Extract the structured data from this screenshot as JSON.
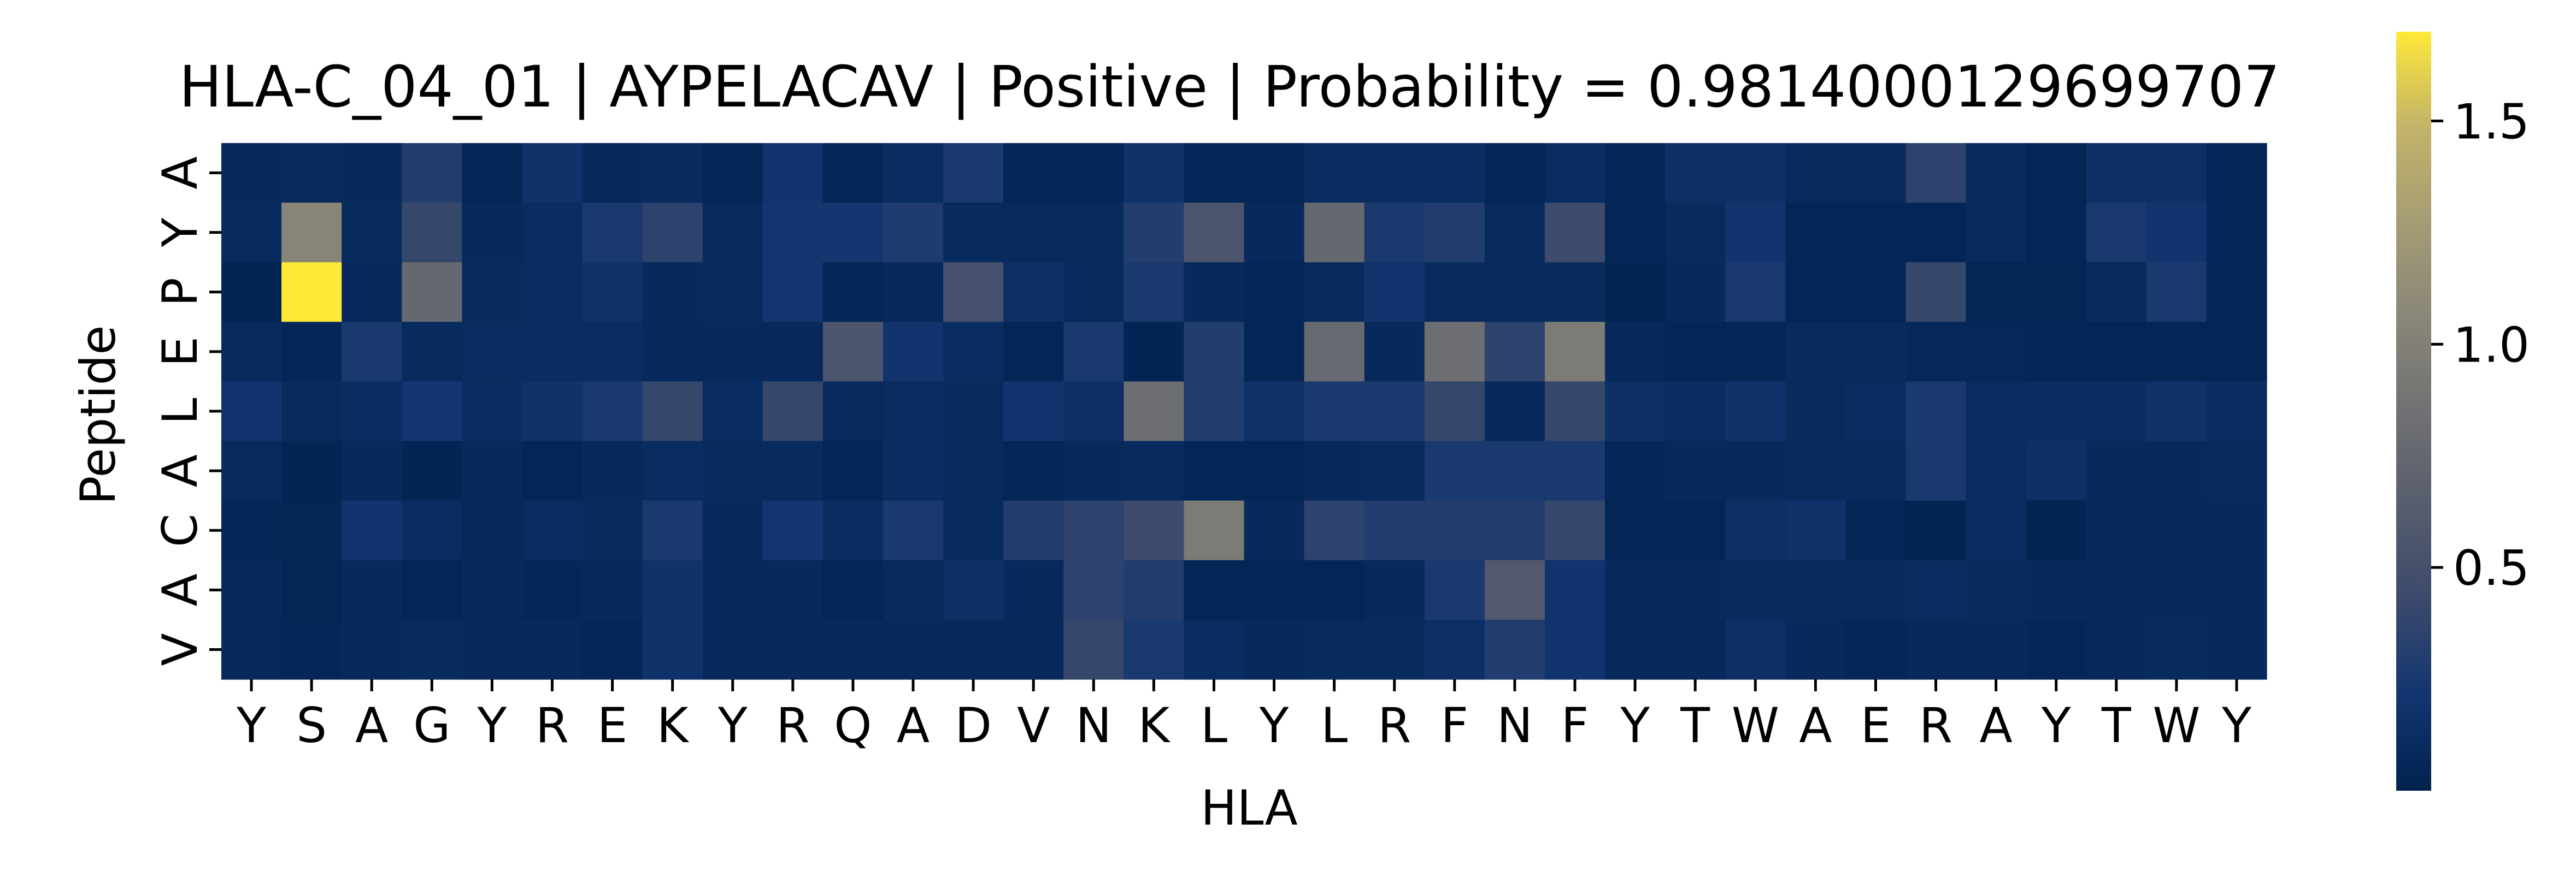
{
  "chart_data": {
    "type": "heatmap",
    "title": "HLA-C_04_01 | AYPELACAV | Positive | Probability = 0.9814000129699707",
    "xlabel": "HLA",
    "ylabel": "Peptide",
    "x_categories": [
      "Y",
      "S",
      "A",
      "G",
      "Y",
      "R",
      "E",
      "K",
      "Y",
      "R",
      "Q",
      "A",
      "D",
      "V",
      "N",
      "K",
      "L",
      "Y",
      "L",
      "R",
      "F",
      "N",
      "F",
      "Y",
      "T",
      "W",
      "A",
      "E",
      "R",
      "A",
      "Y",
      "T",
      "W",
      "Y"
    ],
    "y_categories": [
      "A",
      "Y",
      "P",
      "E",
      "L",
      "A",
      "C",
      "A",
      "V"
    ],
    "colormap": "cividis",
    "color_range": [
      0.0,
      1.7
    ],
    "colorbar_ticks": [
      0.5,
      1.0,
      1.5
    ],
    "colorbar_tick_labels": [
      "0.5",
      "1.0",
      "1.5"
    ],
    "values": [
      [
        0.08,
        0.1,
        0.08,
        0.3,
        0.06,
        0.18,
        0.08,
        0.1,
        0.05,
        0.2,
        0.05,
        0.12,
        0.25,
        0.05,
        0.05,
        0.18,
        0.05,
        0.05,
        0.12,
        0.12,
        0.12,
        0.05,
        0.12,
        0.05,
        0.15,
        0.15,
        0.1,
        0.1,
        0.35,
        0.1,
        0.05,
        0.15,
        0.15,
        0.05
      ],
      [
        0.1,
        1.05,
        0.1,
        0.4,
        0.08,
        0.12,
        0.25,
        0.35,
        0.1,
        0.22,
        0.22,
        0.28,
        0.1,
        0.1,
        0.1,
        0.3,
        0.55,
        0.08,
        0.75,
        0.25,
        0.3,
        0.1,
        0.45,
        0.05,
        0.1,
        0.2,
        0.05,
        0.05,
        0.05,
        0.1,
        0.05,
        0.25,
        0.2,
        0.05
      ],
      [
        0.03,
        1.7,
        0.08,
        0.75,
        0.1,
        0.12,
        0.18,
        0.08,
        0.1,
        0.22,
        0.05,
        0.08,
        0.5,
        0.15,
        0.1,
        0.25,
        0.08,
        0.05,
        0.1,
        0.2,
        0.1,
        0.1,
        0.1,
        0.03,
        0.08,
        0.25,
        0.05,
        0.05,
        0.4,
        0.04,
        0.04,
        0.1,
        0.25,
        0.05
      ],
      [
        0.1,
        0.06,
        0.25,
        0.1,
        0.12,
        0.12,
        0.12,
        0.08,
        0.08,
        0.08,
        0.55,
        0.2,
        0.12,
        0.05,
        0.25,
        0.03,
        0.3,
        0.05,
        0.78,
        0.08,
        0.82,
        0.35,
        0.95,
        0.08,
        0.05,
        0.05,
        0.1,
        0.1,
        0.07,
        0.07,
        0.05,
        0.05,
        0.05,
        0.05
      ],
      [
        0.2,
        0.1,
        0.12,
        0.22,
        0.12,
        0.18,
        0.25,
        0.4,
        0.12,
        0.4,
        0.1,
        0.12,
        0.1,
        0.2,
        0.15,
        0.82,
        0.3,
        0.18,
        0.25,
        0.25,
        0.4,
        0.08,
        0.4,
        0.15,
        0.12,
        0.18,
        0.1,
        0.12,
        0.25,
        0.12,
        0.12,
        0.12,
        0.18,
        0.12
      ],
      [
        0.1,
        0.03,
        0.08,
        0.03,
        0.08,
        0.05,
        0.08,
        0.12,
        0.1,
        0.1,
        0.05,
        0.12,
        0.1,
        0.05,
        0.08,
        0.1,
        0.05,
        0.05,
        0.08,
        0.1,
        0.25,
        0.25,
        0.25,
        0.06,
        0.08,
        0.08,
        0.1,
        0.1,
        0.25,
        0.12,
        0.15,
        0.08,
        0.08,
        0.1
      ],
      [
        0.06,
        0.04,
        0.2,
        0.12,
        0.08,
        0.12,
        0.1,
        0.25,
        0.08,
        0.22,
        0.12,
        0.25,
        0.1,
        0.3,
        0.35,
        0.45,
        0.95,
        0.08,
        0.35,
        0.3,
        0.3,
        0.3,
        0.4,
        0.05,
        0.05,
        0.15,
        0.18,
        0.05,
        0.03,
        0.12,
        0.03,
        0.08,
        0.08,
        0.08
      ],
      [
        0.08,
        0.04,
        0.08,
        0.05,
        0.08,
        0.06,
        0.08,
        0.18,
        0.08,
        0.08,
        0.05,
        0.1,
        0.15,
        0.08,
        0.35,
        0.3,
        0.05,
        0.05,
        0.05,
        0.08,
        0.25,
        0.6,
        0.2,
        0.08,
        0.08,
        0.1,
        0.1,
        0.1,
        0.12,
        0.1,
        0.08,
        0.08,
        0.08,
        0.08
      ],
      [
        0.08,
        0.06,
        0.08,
        0.1,
        0.08,
        0.08,
        0.06,
        0.18,
        0.08,
        0.08,
        0.08,
        0.08,
        0.08,
        0.08,
        0.4,
        0.25,
        0.12,
        0.08,
        0.1,
        0.1,
        0.15,
        0.3,
        0.2,
        0.08,
        0.08,
        0.15,
        0.08,
        0.06,
        0.08,
        0.08,
        0.06,
        0.08,
        0.1,
        0.08
      ]
    ]
  }
}
